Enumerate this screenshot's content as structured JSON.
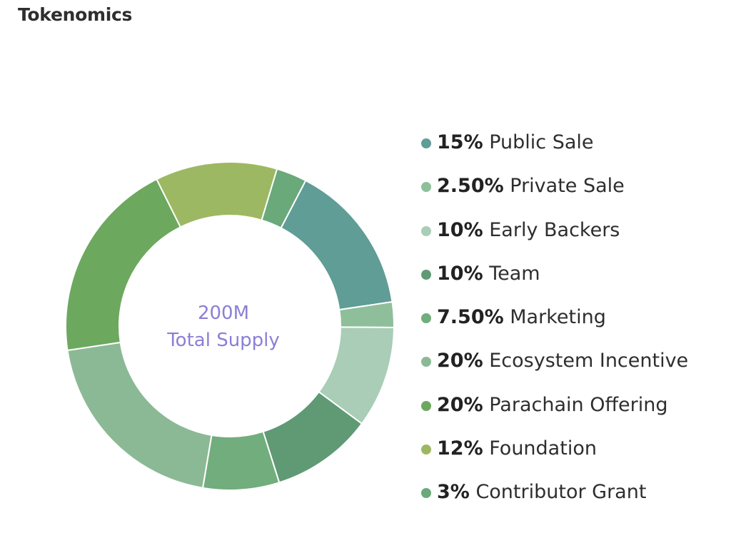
{
  "page": {
    "title": "Tokenomics"
  },
  "chart_data": {
    "type": "pie",
    "title": "Tokenomics",
    "center_label": {
      "value": "200M",
      "caption": "Total Supply",
      "color": "#8b7fd6"
    },
    "donut": true,
    "legend_position": "right",
    "slices": [
      {
        "label": "Public Sale",
        "value": 15,
        "display": "15%",
        "color": "#5f9d96"
      },
      {
        "label": "Private Sale",
        "value": 2.5,
        "display": "2.50%",
        "color": "#8ebf9a"
      },
      {
        "label": "Early Backers",
        "value": 10,
        "display": "10%",
        "color": "#a9cdb6"
      },
      {
        "label": "Team",
        "value": 10,
        "display": "10%",
        "color": "#5f9a74"
      },
      {
        "label": "Marketing",
        "value": 7.5,
        "display": "7.50%",
        "color": "#71ad7d"
      },
      {
        "label": "Ecosystem Incentive",
        "value": 20,
        "display": "20%",
        "color": "#8bb995"
      },
      {
        "label": "Parachain Offering",
        "value": 20,
        "display": "20%",
        "color": "#6ca85e"
      },
      {
        "label": "Foundation",
        "value": 12,
        "display": "12%",
        "color": "#9db862"
      },
      {
        "label": "Contributor Grant",
        "value": 3,
        "display": "3%",
        "color": "#6aa97a"
      }
    ]
  }
}
